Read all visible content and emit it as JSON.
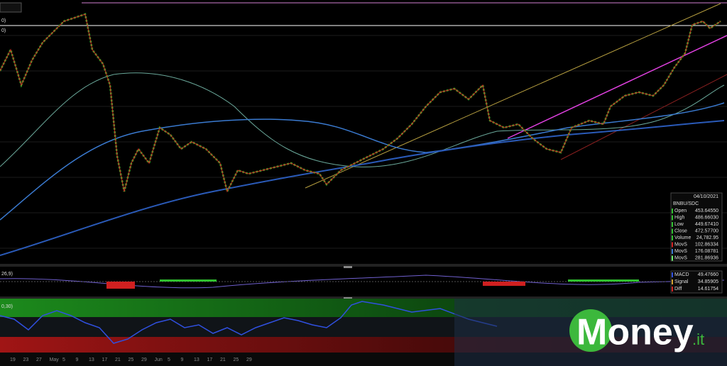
{
  "toolbar": {
    "indicator_labels": [
      "0)",
      "0)"
    ]
  },
  "info_panel": {
    "date": "04/10/2021",
    "symbol": "BNBU/SDC",
    "rows": [
      [
        "Open",
        "453.64550"
      ],
      [
        "High",
        "486.66030"
      ],
      [
        "Low",
        "449.67410"
      ],
      [
        "Close",
        "472.57700"
      ],
      [
        "Volume",
        "24,782.95"
      ],
      [
        "MovS",
        "102.86334"
      ],
      [
        "MovS",
        "176.08781"
      ],
      [
        "MovS",
        "281.86936"
      ]
    ]
  },
  "macd_panel": {
    "label": "26,9)",
    "rows": [
      [
        "MACD",
        "49.47660"
      ],
      [
        "Signal",
        "34.85905"
      ],
      [
        "Diff",
        "14.61754"
      ]
    ]
  },
  "rsi_panel": {
    "label": "0,30)"
  },
  "x_axis": {
    "labels": [
      "19",
      "23",
      "27",
      "May",
      "5",
      "9",
      "13",
      "17",
      "21",
      "25",
      "29",
      "Jun",
      "5",
      "9",
      "13",
      "17",
      "21",
      "25",
      "29"
    ]
  },
  "logo": {
    "text": "Money",
    "suffix": ".it"
  }
}
